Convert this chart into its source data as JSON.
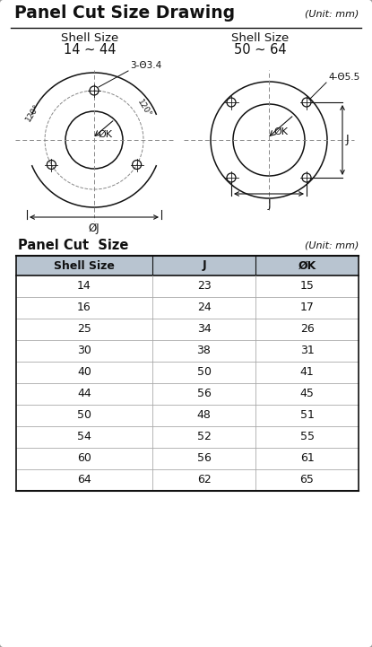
{
  "title": "Panel Cut Size Drawing",
  "title_unit": "(Unit: mm)",
  "bg_color": "#e8e8e8",
  "panel_bg": "#ffffff",
  "border_color": "#999999",
  "shell1_label": "Shell Size",
  "shell1_range": "14 ~ 44",
  "shell2_label": "Shell Size",
  "shell2_range": "50 ~ 64",
  "dim1_note": "3-Θ3.4",
  "dim2_note": "4-Θ5.5",
  "table_title": "Panel Cut  Size",
  "table_unit": "(Unit: mm)",
  "col_headers": [
    "Shell Size",
    "J",
    "ØK"
  ],
  "col_header_bg": "#b8c4d0",
  "table_data": [
    [
      "14",
      "23",
      "15"
    ],
    [
      "16",
      "24",
      "17"
    ],
    [
      "25",
      "34",
      "26"
    ],
    [
      "30",
      "38",
      "31"
    ],
    [
      "40",
      "50",
      "41"
    ],
    [
      "44",
      "56",
      "45"
    ],
    [
      "50",
      "48",
      "51"
    ],
    [
      "54",
      "52",
      "55"
    ],
    [
      "60",
      "56",
      "61"
    ],
    [
      "64",
      "62",
      "65"
    ]
  ],
  "line_color": "#111111",
  "dash_color": "#888888",
  "text_color": "#111111",
  "dim_color": "#444444"
}
